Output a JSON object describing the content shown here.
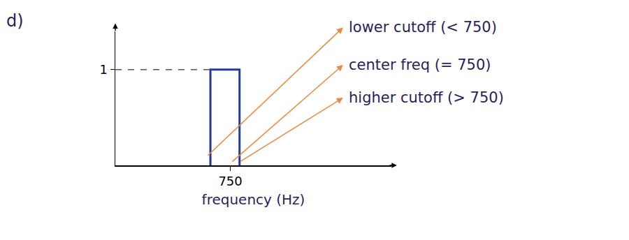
{
  "chart_data": {
    "type": "line",
    "panel_label": "d)",
    "x": [
      620,
      620,
      810,
      810
    ],
    "values": [
      0,
      1,
      1,
      0
    ],
    "color": "#1f3c9c",
    "xlabel": "frequency (Hz)",
    "xlim": [
      0,
      1800
    ],
    "ylim": [
      0,
      1.4
    ],
    "xticks": [
      750
    ],
    "yticks": [
      1
    ],
    "grid": false,
    "annotations": [
      "lower cutoff (< 750)",
      "center freq (= 750)",
      "higher cutoff (> 750)"
    ]
  }
}
